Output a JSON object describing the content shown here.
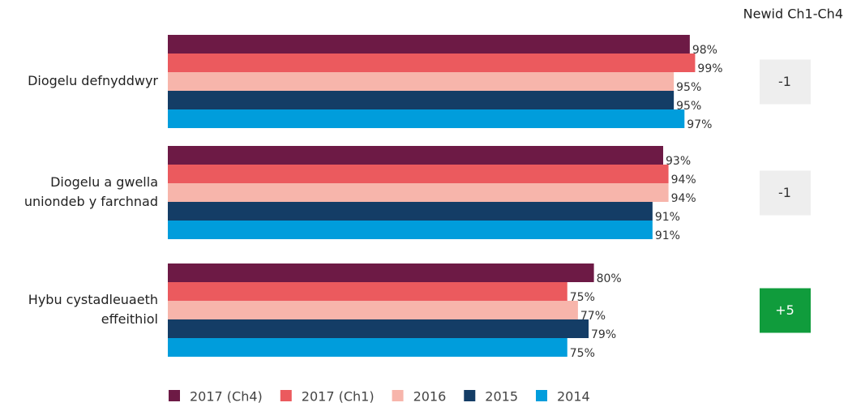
{
  "chart_data": {
    "type": "hbar",
    "categories": [
      [
        "Diogelu defnyddwyr"
      ],
      [
        "Diogelu a gwella",
        "uniondeb y farchnad"
      ],
      [
        "Hybu cystadleuaeth",
        "effeithiol"
      ]
    ],
    "series": [
      {
        "name": "2017 (Ch4)",
        "color": "#6d1a45",
        "values": [
          98,
          93,
          80
        ],
        "value_labels": [
          "98%",
          "93%",
          "80%"
        ]
      },
      {
        "name": "2017 (Ch1)",
        "color": "#eb5a5e",
        "values": [
          99,
          94,
          75
        ],
        "value_labels": [
          "99%",
          "94%",
          "75%"
        ]
      },
      {
        "name": "2016",
        "color": "#f7b5ab",
        "values": [
          95,
          94,
          77
        ],
        "value_labels": [
          "95%",
          "94%",
          "77%"
        ]
      },
      {
        "name": "2015",
        "color": "#143d66",
        "values": [
          95,
          91,
          79
        ],
        "value_labels": [
          "95%",
          "91%",
          "79%"
        ]
      },
      {
        "name": "2014",
        "color": "#009ddc",
        "values": [
          97,
          91,
          75
        ],
        "value_labels": [
          "97%",
          "91%",
          "75%"
        ]
      }
    ],
    "xlim": [
      0,
      100
    ],
    "change": {
      "title": "Newid Ch1-Ch4",
      "values": [
        -1,
        -1,
        5
      ],
      "value_labels": [
        "-1",
        "-1",
        "+5"
      ],
      "colors": [
        "#eeeeee",
        "#eeeeee",
        "#109c3c"
      ],
      "text_colors": [
        "#333333",
        "#333333",
        "#ffffff"
      ]
    },
    "legend": "bottom"
  }
}
